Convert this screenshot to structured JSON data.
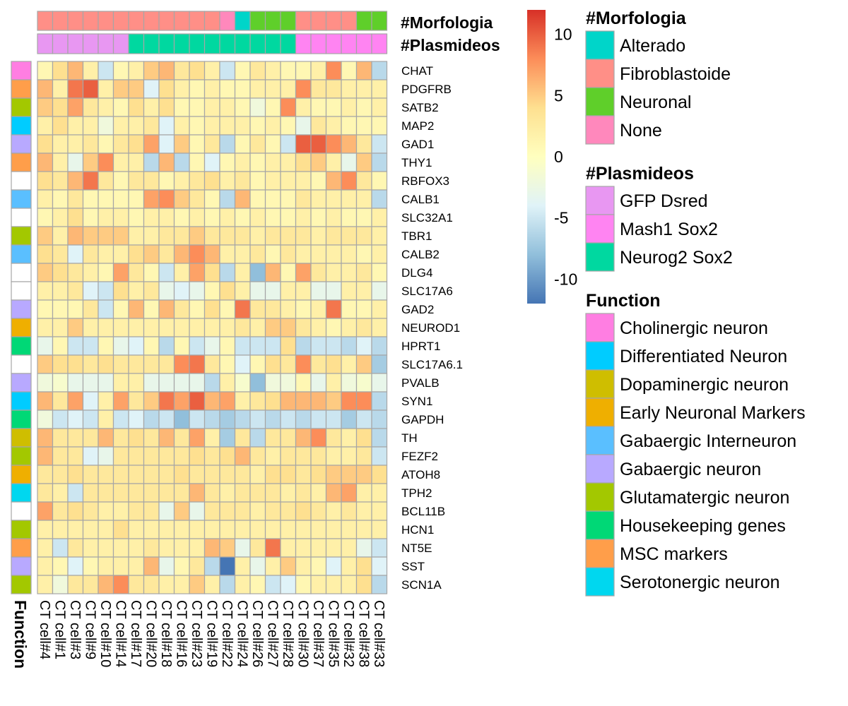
{
  "chart_data": {
    "type": "heatmap",
    "title": "",
    "columns": [
      "CT cell#4",
      "CT cell#1",
      "CT cell#3",
      "CT cell#9",
      "CT cell#10",
      "CT cell#14",
      "CT cell#17",
      "CT cell#20",
      "CT cell#18",
      "CT cell#16",
      "CT cell#23",
      "CT cell#19",
      "CT cell#22",
      "CT cell#24",
      "CT cell#26",
      "CT cell#27",
      "CT cell#28",
      "CT cell#30",
      "CT cell#37",
      "CT cell#35",
      "CT cell#32",
      "CT cell#38",
      "CT cell#33"
    ],
    "rows": [
      "CHAT",
      "PDGFRB",
      "SATB2",
      "MAP2",
      "GAD1",
      "THY1",
      "RBFOX3",
      "CALB1",
      "SLC32A1",
      "TBR1",
      "CALB2",
      "DLG4",
      "SLC17A6",
      "GAD2",
      "NEUROD1",
      "HPRT1",
      "SLC17A6.1",
      "PVALB",
      "SYN1",
      "GAPDH",
      "TH",
      "FEZF2",
      "ATOH8",
      "TPH2",
      "BCL11B",
      "HCN1",
      "NT5E",
      "SST",
      "SCN1A"
    ],
    "values": [
      [
        1,
        4,
        6,
        2,
        -5,
        1,
        2,
        5,
        6,
        3,
        4,
        2,
        -5,
        1,
        3,
        2,
        1,
        1,
        2,
        8,
        1,
        6,
        -6
      ],
      [
        6,
        2,
        9,
        10,
        2,
        5,
        5,
        -4,
        4,
        2,
        1,
        2,
        1,
        1,
        2,
        2,
        2,
        8,
        3,
        3,
        2,
        2,
        2
      ],
      [
        5,
        4,
        7,
        3,
        2,
        1,
        4,
        2,
        4,
        1,
        1,
        2,
        2,
        1,
        -2,
        1,
        8,
        2,
        1,
        1,
        2,
        1,
        2
      ],
      [
        2,
        4,
        2,
        2,
        -2,
        2,
        2,
        3,
        -4,
        2,
        1,
        2,
        2,
        2,
        1,
        2,
        1,
        -3,
        3,
        2,
        1,
        1,
        1
      ],
      [
        4,
        2,
        2,
        3,
        1,
        3,
        4,
        7,
        -4,
        5,
        1,
        3,
        -6,
        1,
        3,
        1,
        -5,
        10,
        10,
        8,
        6,
        3,
        -5
      ],
      [
        6,
        2,
        -3,
        5,
        8,
        2,
        2,
        -6,
        6,
        -6,
        1,
        -4,
        1,
        2,
        1,
        2,
        2,
        4,
        5,
        2,
        -3,
        5,
        -6
      ],
      [
        4,
        3,
        6,
        9,
        3,
        1,
        3,
        3,
        1,
        2,
        3,
        4,
        2,
        3,
        1,
        2,
        2,
        2,
        1,
        6,
        8,
        3,
        1
      ],
      [
        2,
        1,
        3,
        1,
        1,
        1,
        1,
        7,
        8,
        5,
        3,
        1,
        -6,
        6,
        1,
        1,
        1,
        3,
        2,
        2,
        2,
        2,
        -6
      ],
      [
        1,
        2,
        4,
        1,
        2,
        2,
        1,
        2,
        2,
        1,
        2,
        1,
        2,
        1,
        2,
        1,
        1,
        2,
        1,
        2,
        1,
        1,
        2
      ],
      [
        5,
        2,
        6,
        5,
        5,
        5,
        2,
        2,
        3,
        3,
        5,
        3,
        3,
        3,
        2,
        3,
        3,
        3,
        2,
        3,
        3,
        3,
        2
      ],
      [
        4,
        3,
        -4,
        3,
        2,
        2,
        4,
        5,
        3,
        6,
        8,
        6,
        2,
        2,
        3,
        1,
        3,
        2,
        2,
        2,
        2,
        1,
        2
      ],
      [
        5,
        4,
        3,
        2,
        1,
        7,
        3,
        1,
        -5,
        2,
        7,
        4,
        -6,
        2,
        -8,
        6,
        1,
        7,
        3,
        2,
        2,
        3,
        1
      ],
      [
        2,
        2,
        3,
        -4,
        -5,
        4,
        2,
        3,
        -3,
        -4,
        -3,
        1,
        4,
        2,
        -3,
        -3,
        2,
        2,
        -3,
        -3,
        2,
        2,
        -3
      ],
      [
        1,
        1,
        1,
        3,
        -5,
        1,
        6,
        1,
        6,
        3,
        1,
        4,
        1,
        9,
        3,
        3,
        2,
        1,
        2,
        9,
        1,
        1,
        2
      ],
      [
        2,
        2,
        5,
        2,
        2,
        2,
        2,
        2,
        2,
        2,
        2,
        2,
        2,
        3,
        2,
        5,
        5,
        3,
        2,
        1,
        2,
        3,
        2
      ],
      [
        -3,
        1,
        -5,
        -5,
        1,
        -3,
        -4,
        1,
        -6,
        1,
        -5,
        -3,
        1,
        -5,
        -5,
        -5,
        4,
        -6,
        -5,
        -5,
        -6,
        -4,
        -6
      ],
      [
        5,
        4,
        4,
        3,
        4,
        3,
        3,
        3,
        3,
        8,
        9,
        3,
        1,
        -4,
        1,
        4,
        3,
        8,
        3,
        4,
        2,
        5,
        -7
      ],
      [
        -2,
        -1,
        -3,
        -3,
        -3,
        2,
        2,
        -3,
        -3,
        -3,
        -3,
        -6,
        2,
        -1,
        -8,
        -2,
        -2,
        1,
        -3,
        2,
        -2,
        -1,
        -3
      ],
      [
        6,
        3,
        7,
        -4,
        2,
        7,
        3,
        5,
        9,
        7,
        10,
        6,
        7,
        2,
        3,
        4,
        6,
        6,
        6,
        5,
        8,
        8,
        -6
      ],
      [
        -2,
        -5,
        -4,
        -5,
        2,
        -5,
        -4,
        -6,
        -5,
        -8,
        -5,
        -6,
        -7,
        -6,
        -5,
        -6,
        -5,
        -6,
        -5,
        -5,
        -7,
        -5,
        -6
      ],
      [
        6,
        3,
        3,
        3,
        6,
        3,
        4,
        3,
        6,
        3,
        7,
        2,
        -7,
        3,
        -6,
        3,
        3,
        6,
        8,
        3,
        2,
        4,
        -6
      ],
      [
        6,
        3,
        3,
        -4,
        -3,
        3,
        3,
        3,
        3,
        3,
        4,
        3,
        4,
        6,
        3,
        2,
        3,
        3,
        3,
        2,
        2,
        3,
        -5
      ],
      [
        3,
        3,
        4,
        3,
        3,
        3,
        3,
        3,
        3,
        4,
        3,
        3,
        3,
        3,
        2,
        4,
        4,
        3,
        4,
        5,
        5,
        5,
        4
      ],
      [
        3,
        2,
        -5,
        3,
        3,
        3,
        3,
        3,
        3,
        3,
        6,
        3,
        2,
        3,
        3,
        3,
        2,
        3,
        2,
        6,
        7,
        2,
        2
      ],
      [
        7,
        3,
        4,
        3,
        2,
        2,
        3,
        3,
        -3,
        5,
        -3,
        3,
        3,
        3,
        2,
        3,
        3,
        4,
        3,
        2,
        3,
        2,
        2
      ],
      [
        2,
        2,
        2,
        2,
        2,
        4,
        2,
        2,
        2,
        2,
        2,
        2,
        2,
        2,
        2,
        2,
        2,
        2,
        2,
        2,
        2,
        2,
        2
      ],
      [
        2,
        -5,
        3,
        2,
        2,
        2,
        2,
        3,
        2,
        2,
        2,
        6,
        5,
        -3,
        3,
        9,
        2,
        2,
        2,
        2,
        2,
        -3,
        -5
      ],
      [
        2,
        1,
        -4,
        1,
        2,
        2,
        2,
        6,
        -3,
        1,
        3,
        -6,
        -12,
        2,
        -3,
        2,
        5,
        2,
        1,
        -4,
        2,
        4,
        -4
      ],
      [
        2,
        -2,
        3,
        3,
        6,
        8,
        3,
        3,
        2,
        2,
        5,
        2,
        -6,
        2,
        1,
        -5,
        -4,
        1,
        2,
        2,
        2,
        4,
        -6
      ]
    ],
    "color_scale": {
      "min": -12,
      "max": 12,
      "stops": [
        "#4575b4",
        "#91bfdb",
        "#e0f3f8",
        "#ffffbf",
        "#fee090",
        "#fc8d59",
        "#d73027"
      ],
      "ticks": [
        10,
        5,
        0,
        -5,
        -10
      ]
    },
    "tracks": {
      "morfologia": {
        "label": "#Morfologia",
        "values": [
          "Fibroblastoide",
          "Fibroblastoide",
          "Fibroblastoide",
          "Fibroblastoide",
          "Fibroblastoide",
          "Fibroblastoide",
          "Fibroblastoide",
          "Fibroblastoide",
          "Fibroblastoide",
          "Fibroblastoide",
          "Fibroblastoide",
          "Fibroblastoide",
          "None",
          "Alterado",
          "Neuronal",
          "Neuronal",
          "Neuronal",
          "Fibroblastoide",
          "Fibroblastoide",
          "Fibroblastoide",
          "Fibroblastoide",
          "Neuronal",
          "Neuronal"
        ]
      },
      "plasmideos": {
        "label": "#Plasmideos",
        "values": [
          "GFP Dsred",
          "GFP Dsred",
          "GFP Dsred",
          "GFP Dsred",
          "GFP Dsred",
          "GFP Dsred",
          "Neurog2 Sox2",
          "Neurog2 Sox2",
          "Neurog2 Sox2",
          "Neurog2 Sox2",
          "Neurog2 Sox2",
          "Neurog2 Sox2",
          "Neurog2 Sox2",
          "Neurog2 Sox2",
          "Neurog2 Sox2",
          "Neurog2 Sox2",
          "Neurog2 Sox2",
          "Mash1 Sox2",
          "Mash1 Sox2",
          "Mash1 Sox2",
          "Mash1 Sox2",
          "Mash1 Sox2",
          "Mash1 Sox2"
        ]
      },
      "function": {
        "label": "Function",
        "values": [
          "Cholinergic neuron",
          "MSC markers",
          "Glutamatergic neuron",
          "Differentiated Neuron",
          "Gabaergic neuron",
          "MSC markers",
          "",
          "Gabaergic Interneuron",
          "",
          "Glutamatergic neuron",
          "Gabaergic Interneuron",
          "",
          "",
          "Gabaergic neuron",
          "Early Neuronal Markers",
          "Housekeeping genes",
          "",
          "Gabaergic neuron",
          "Differentiated Neuron",
          "Housekeeping genes",
          "Dopaminergic neuron",
          "Glutamatergic neuron",
          "Early Neuronal Markers",
          "Serotonergic neuron",
          "",
          "Glutamatergic neuron",
          "MSC markers",
          "Gabaergic neuron",
          "Glutamatergic neuron"
        ]
      }
    },
    "legends": [
      {
        "title": "#Morfologia",
        "items": [
          {
            "label": "Alterado",
            "color": "#00D5C9"
          },
          {
            "label": "Fibroblastoide",
            "color": "#FF8F87"
          },
          {
            "label": "Neuronal",
            "color": "#5FCF2A"
          },
          {
            "label": "None",
            "color": "#FF88BC"
          }
        ]
      },
      {
        "title": "#Plasmideos",
        "items": [
          {
            "label": "GFP Dsred",
            "color": "#E897F2"
          },
          {
            "label": "Mash1 Sox2",
            "color": "#FF84F2"
          },
          {
            "label": "Neurog2 Sox2",
            "color": "#00D8A0"
          }
        ]
      },
      {
        "title": "Function",
        "items": [
          {
            "label": "Cholinergic neuron",
            "color": "#FF7EE2"
          },
          {
            "label": "Differentiated Neuron",
            "color": "#00CCFF"
          },
          {
            "label": "Dopaminergic neuron",
            "color": "#CFBE00"
          },
          {
            "label": "Early Neuronal Markers",
            "color": "#EFAF00"
          },
          {
            "label": "Gabaergic Interneuron",
            "color": "#5ABFFF"
          },
          {
            "label": "Gabaergic neuron",
            "color": "#B8A9FF"
          },
          {
            "label": "Glutamatergic neuron",
            "color": "#A3C800"
          },
          {
            "label": "Housekeeping genes",
            "color": "#00D876"
          },
          {
            "label": "MSC markers",
            "color": "#FF9E4A"
          },
          {
            "label": "Serotonergic neuron",
            "color": "#00D7EF"
          }
        ]
      }
    ]
  }
}
